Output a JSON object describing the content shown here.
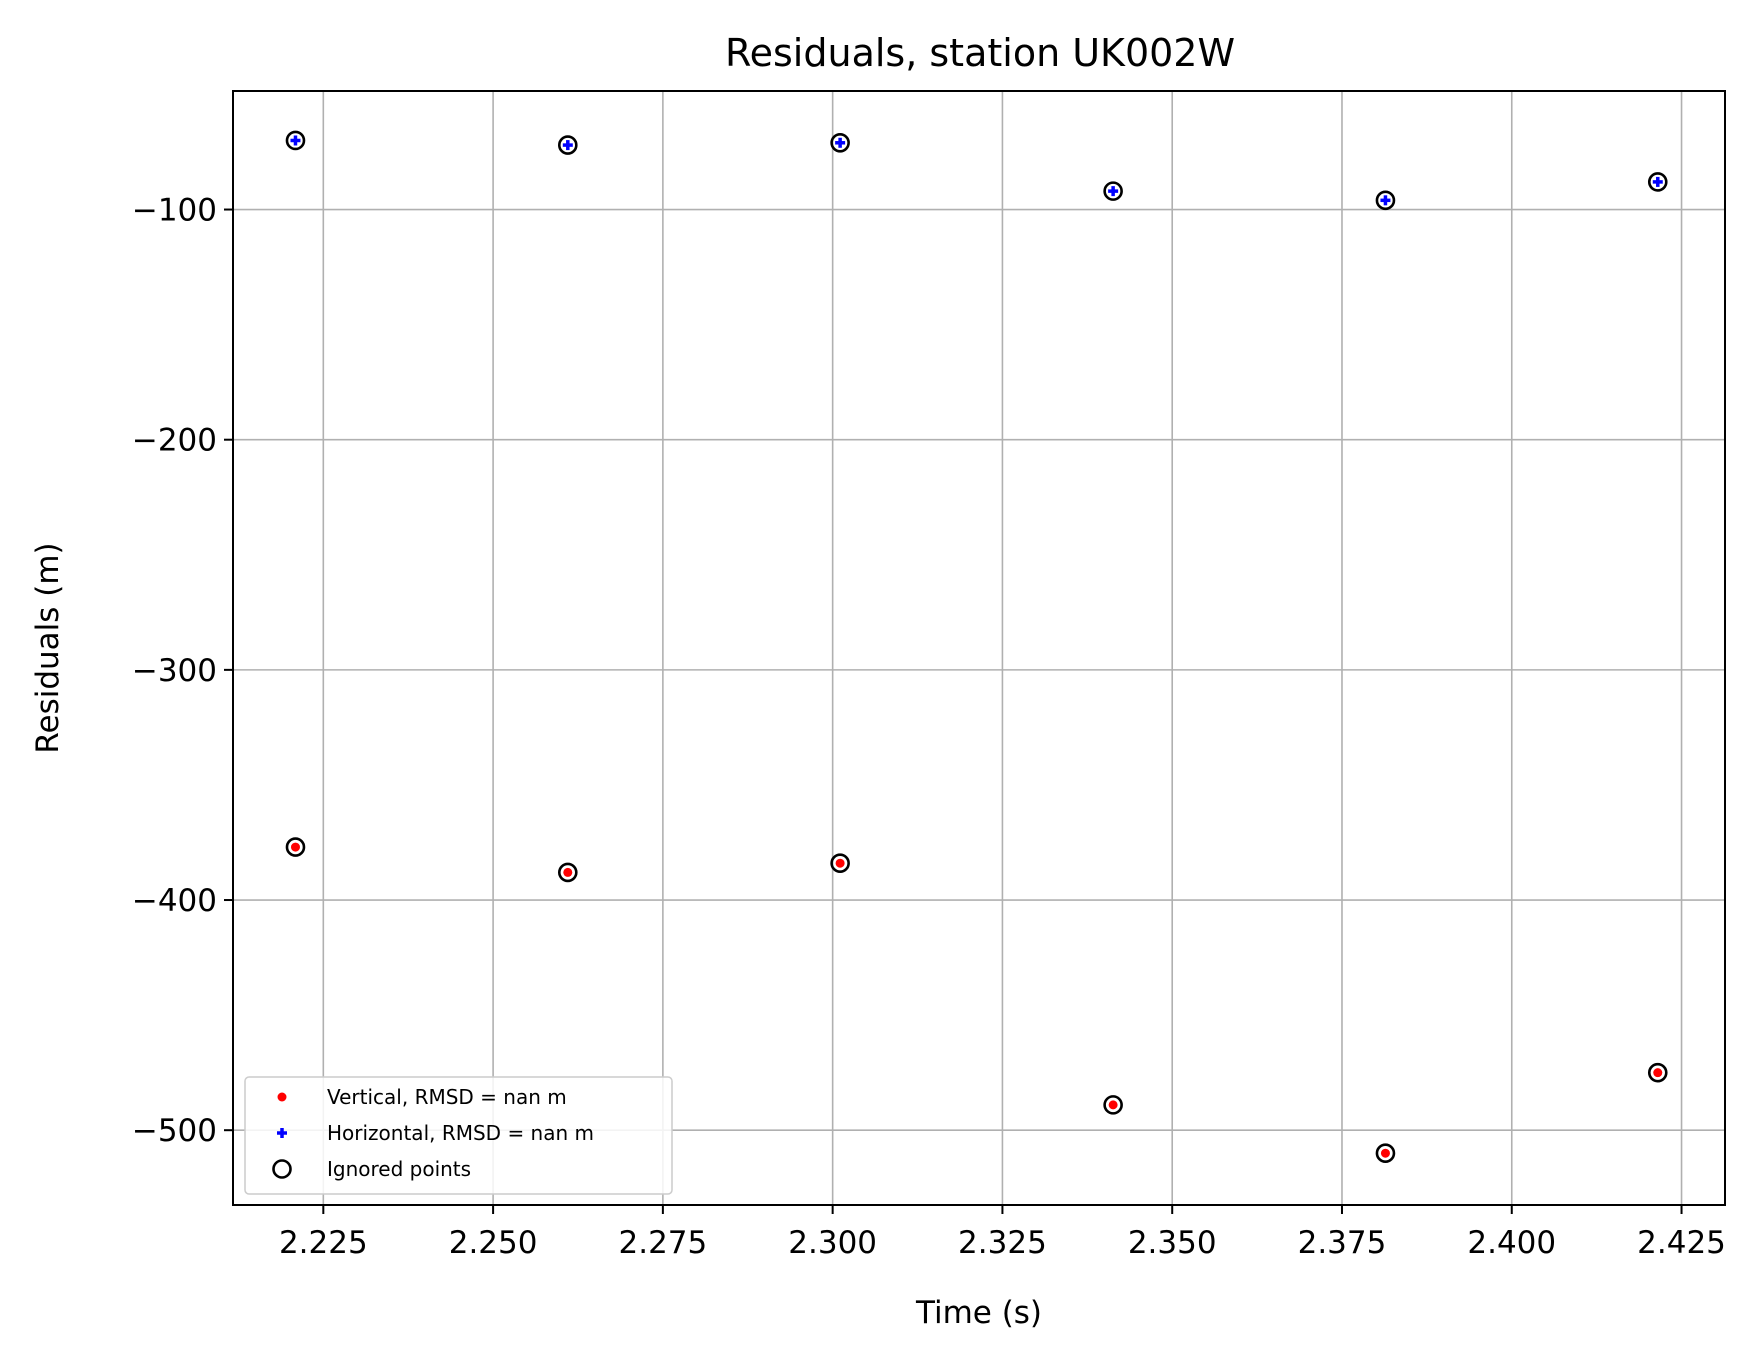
{
  "chart_data": {
    "type": "scatter",
    "title": "Residuals, station UK002W",
    "xlabel": "Time (s)",
    "ylabel": "Residuals (m)",
    "xlim": [
      2.2117,
      2.4314
    ],
    "ylim": [
      -532.5,
      -48.5
    ],
    "grid": true,
    "legend_position": "lower-left",
    "x_ticks": [
      2.225,
      2.25,
      2.275,
      2.3,
      2.325,
      2.35,
      2.375,
      2.4,
      2.425
    ],
    "x_tick_labels": [
      "2.225",
      "2.250",
      "2.275",
      "2.300",
      "2.325",
      "2.350",
      "2.375",
      "2.400",
      "2.425"
    ],
    "y_ticks": [
      -100,
      -200,
      -300,
      -400,
      -500
    ],
    "y_tick_labels": [
      "−100",
      "−200",
      "−300",
      "−400",
      "−500"
    ],
    "series": [
      {
        "name": "Vertical, RMSD = nan m",
        "marker": "dot",
        "color": "#ff0000",
        "x": [
          2.2209,
          2.261,
          2.3011,
          2.3413,
          2.3814,
          2.4215
        ],
        "y": [
          -377,
          -388,
          -384,
          -489,
          -510,
          -475
        ]
      },
      {
        "name": "Horizontal, RMSD = nan m",
        "marker": "plus",
        "color": "#0000ff",
        "x": [
          2.2209,
          2.261,
          2.3011,
          2.3413,
          2.3814,
          2.4215
        ],
        "y": [
          -70,
          -72,
          -71,
          -92,
          -96,
          -88
        ]
      },
      {
        "name": "Ignored points",
        "marker": "open-circle",
        "color": "#000000",
        "x": [
          2.2209,
          2.261,
          2.3011,
          2.3413,
          2.3814,
          2.4215,
          2.2209,
          2.261,
          2.3011,
          2.3413,
          2.3814,
          2.4215
        ],
        "y": [
          -377,
          -388,
          -384,
          -489,
          -510,
          -475,
          -70,
          -72,
          -71,
          -92,
          -96,
          -88
        ]
      }
    ]
  }
}
